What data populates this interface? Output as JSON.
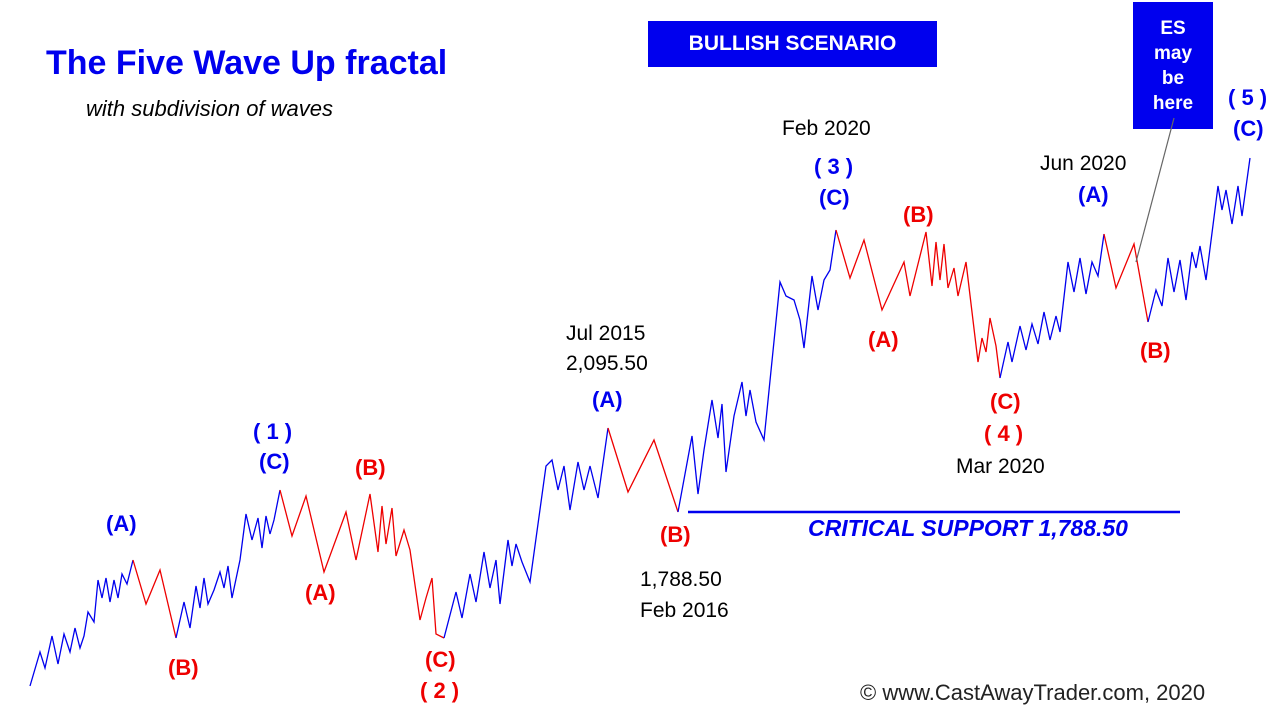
{
  "title": "The Five Wave Up fractal",
  "subtitle": "with subdivision of waves",
  "scenario_label": "BULLISH SCENARIO",
  "callout": [
    "ES",
    "may",
    "be",
    "here"
  ],
  "annotations": {
    "jul2015_date": "Jul 2015",
    "jul2015_price": "2,095.50",
    "feb2016_price": "1,788.50",
    "feb2016_date": "Feb 2016",
    "feb2020_date": "Feb 2020",
    "mar2020_date": "Mar 2020",
    "jun2020_date": "Jun 2020"
  },
  "wave_labels": {
    "w1": "( 1 )",
    "w2": "( 2 )",
    "w3": "( 3 )",
    "w4": "( 4 )",
    "w5": "( 5 )",
    "a": "(A)",
    "b": "(B)",
    "c": "(C)"
  },
  "support_label": "CRITICAL SUPPORT 1,788.50",
  "copyright": "© www.CastAwayTrader.com, 2020",
  "colors": {
    "impulse": "#0000ee",
    "correction": "#ee0000",
    "callout_bg": "#0000ee",
    "support_line": "#0000ee"
  }
}
